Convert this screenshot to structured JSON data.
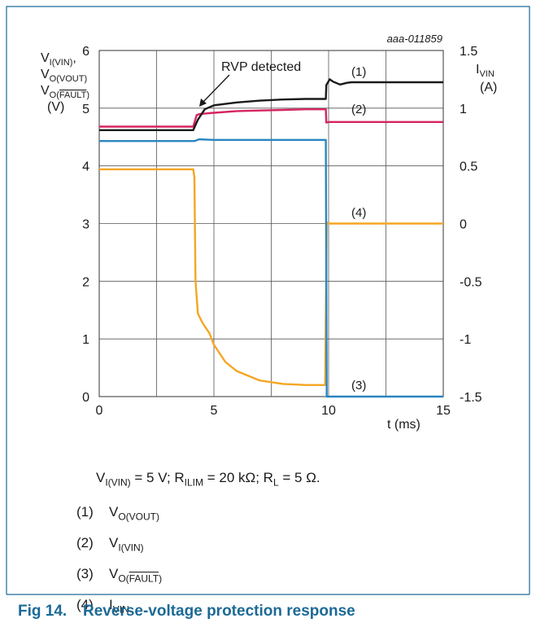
{
  "chart_data": {
    "type": "line",
    "figure_code": "aaa-011859",
    "xlabel": "t (ms)",
    "x_ticks": [
      "0",
      "5",
      "10",
      "15"
    ],
    "xlim": [
      0,
      15
    ],
    "ylabel_left": {
      "line1": "V",
      "line1_sub": "I(VIN)",
      "line2": "V",
      "line2_sub": "O(VOUT)",
      "line3": "V",
      "line3_sub_a": "O(",
      "line3_sub_b": "FAULT",
      "line3_sub_c": ")",
      "line4": "(V)"
    },
    "y_left_ticks": [
      "0",
      "1",
      "2",
      "3",
      "4",
      "5",
      "6"
    ],
    "ylim_left": [
      0,
      6
    ],
    "ylabel_right": {
      "main": "I",
      "sub": "VIN",
      "unit": "(A)"
    },
    "y_right_ticks": [
      "-1.5",
      "-1",
      "-0.5",
      "0",
      "0.5",
      "1",
      "1.5"
    ],
    "ylim_right": [
      -1.5,
      1.5
    ],
    "grid": true,
    "annotation": "RVP detected",
    "series": [
      {
        "label": "(1)",
        "color": "#1a1a1a",
        "axis": "left",
        "x": [
          0,
          4.1,
          4.3,
          4.6,
          5,
          6,
          7,
          8,
          9,
          9.88,
          9.9,
          10.05,
          10.2,
          10.5,
          10.8,
          11,
          11.5,
          12,
          15
        ],
        "y": [
          4.62,
          4.62,
          4.8,
          4.98,
          5.05,
          5.1,
          5.13,
          5.15,
          5.16,
          5.16,
          5.4,
          5.5,
          5.46,
          5.41,
          5.44,
          5.45,
          5.45,
          5.45,
          5.45
        ]
      },
      {
        "label": "(2)",
        "color": "#d6235f",
        "axis": "left",
        "x": [
          0,
          4.1,
          4.25,
          4.4,
          5,
          6,
          7,
          8,
          9,
          9.88,
          9.9,
          10,
          10.2,
          15
        ],
        "y": [
          4.68,
          4.68,
          4.88,
          4.9,
          4.92,
          4.95,
          4.96,
          4.97,
          4.98,
          4.98,
          4.75,
          4.76,
          4.76,
          4.76
        ]
      },
      {
        "label": "(3)",
        "color": "#2a86c0",
        "axis": "left",
        "x": [
          0,
          4.15,
          4.35,
          5,
          6,
          9.88,
          9.92,
          10,
          15
        ],
        "y": [
          4.43,
          4.43,
          4.46,
          4.45,
          4.45,
          4.45,
          0,
          0,
          0
        ]
      },
      {
        "label": "(4)",
        "color": "#f5a623",
        "axis": "right",
        "x": [
          0,
          4.1,
          4.15,
          4.2,
          4.3,
          4.5,
          4.8,
          5,
          5.5,
          6,
          7,
          8,
          9,
          9.85,
          9.92,
          10,
          10.2,
          15
        ],
        "y": [
          0.47,
          0.47,
          0.4,
          -0.5,
          -0.78,
          -0.86,
          -0.95,
          -1.05,
          -1.2,
          -1.28,
          -1.36,
          -1.39,
          -1.4,
          -1.4,
          0.01,
          0.0,
          0.0,
          0.0
        ]
      }
    ]
  },
  "notes": {
    "condition": {
      "p1": "V",
      "p1_sub": "I(VIN)",
      "p2": " = 5 V; R",
      "p2_sub": "ILIM",
      "p3": " = 20 kΩ; R",
      "p3_sub": "L",
      "p4": " = 5 Ω."
    },
    "items": [
      {
        "num": "(1)",
        "main": "V",
        "sub": "O(VOUT)"
      },
      {
        "num": "(2)",
        "main": "V",
        "sub": "I(VIN)"
      },
      {
        "num": "(3)",
        "main": "V",
        "sub_a": "O(",
        "sub_ovl": "FAULT",
        "sub_c": ")"
      },
      {
        "num": "(4)",
        "main": "I",
        "sub": "VIN"
      }
    ]
  },
  "caption": {
    "fig": "Fig 14.",
    "title": "Reverse-voltage protection response"
  },
  "colors": {
    "frame": "#1c6a96",
    "caption": "#1c6a96"
  }
}
